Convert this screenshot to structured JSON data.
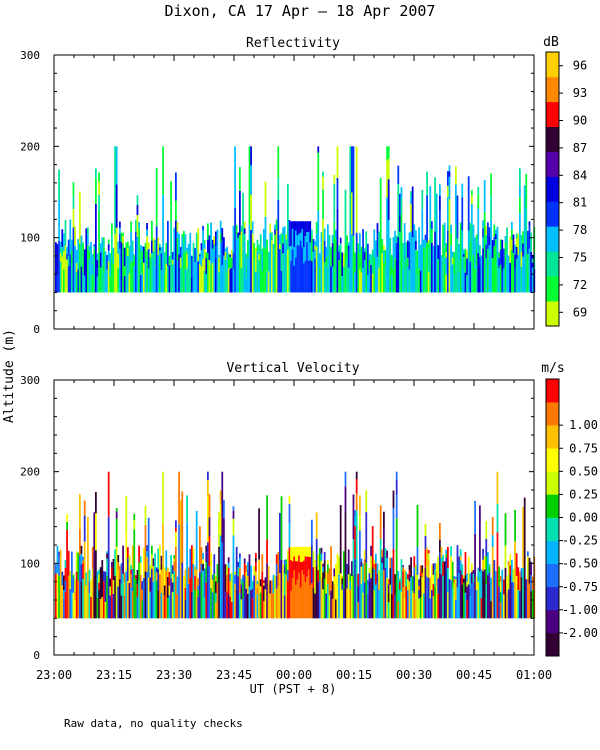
{
  "title": "Dixon, CA 17 Apr — 18 Apr 2007",
  "ylabel": "Altitude (m)",
  "xlabel": "UT (PST + 8)",
  "footnote": "Raw data, no quality checks",
  "colors": {
    "refl_scale": [
      "#ccff00",
      "#00ff33",
      "#00e699",
      "#00bfff",
      "#0033ff",
      "#0000e0",
      "#5500aa",
      "#330033",
      "#ff0000",
      "#ff8800",
      "#ffd000"
    ],
    "vel_scale": [
      "#330033",
      "#4a0080",
      "#2a2ad0",
      "#1f6fff",
      "#00b4ff",
      "#00e0b0",
      "#00d000",
      "#ccff00",
      "#ffff00",
      "#ffc000",
      "#ff7800",
      "#ff0000"
    ]
  },
  "chart_data": [
    {
      "type": "heatmap",
      "title": "Reflectivity",
      "colorbar_unit": "dB",
      "colorbar_ticks": [
        "69",
        "72",
        "75",
        "78",
        "81",
        "84",
        "87",
        "90",
        "93",
        "96"
      ],
      "colorbar_range": [
        67.5,
        97.5
      ],
      "x_ticks": [
        "23:00",
        "23:15",
        "23:30",
        "23:45",
        "00:00",
        "00:15",
        "00:30",
        "00:45",
        "01:00"
      ],
      "x_range_minutes": [
        0,
        120
      ],
      "y_ticks": [
        "0",
        "100",
        "200",
        "300"
      ],
      "ylim": [
        0,
        300
      ],
      "data_altitude_range": [
        40,
        200
      ],
      "gap_minutes": [
        59,
        64
      ],
      "mean_top_altitude": 100
    },
    {
      "type": "heatmap",
      "title": "Vertical Velocity",
      "colorbar_unit": "m/s",
      "colorbar_ticks": [
        "-2.00",
        "-1.00",
        "-0.75",
        "-0.50",
        "-0.25",
        "0.00",
        "0.25",
        "0.50",
        "0.75",
        "1.00"
      ],
      "x_ticks": [
        "23:00",
        "23:15",
        "23:30",
        "23:45",
        "00:00",
        "00:15",
        "00:30",
        "00:45",
        "01:00"
      ],
      "x_range_minutes": [
        0,
        120
      ],
      "y_ticks": [
        "0",
        "100",
        "200",
        "300"
      ],
      "ylim": [
        0,
        300
      ],
      "data_altitude_range": [
        40,
        200
      ],
      "gap_minutes": [
        59,
        64
      ],
      "mean_top_altitude": 100
    }
  ]
}
